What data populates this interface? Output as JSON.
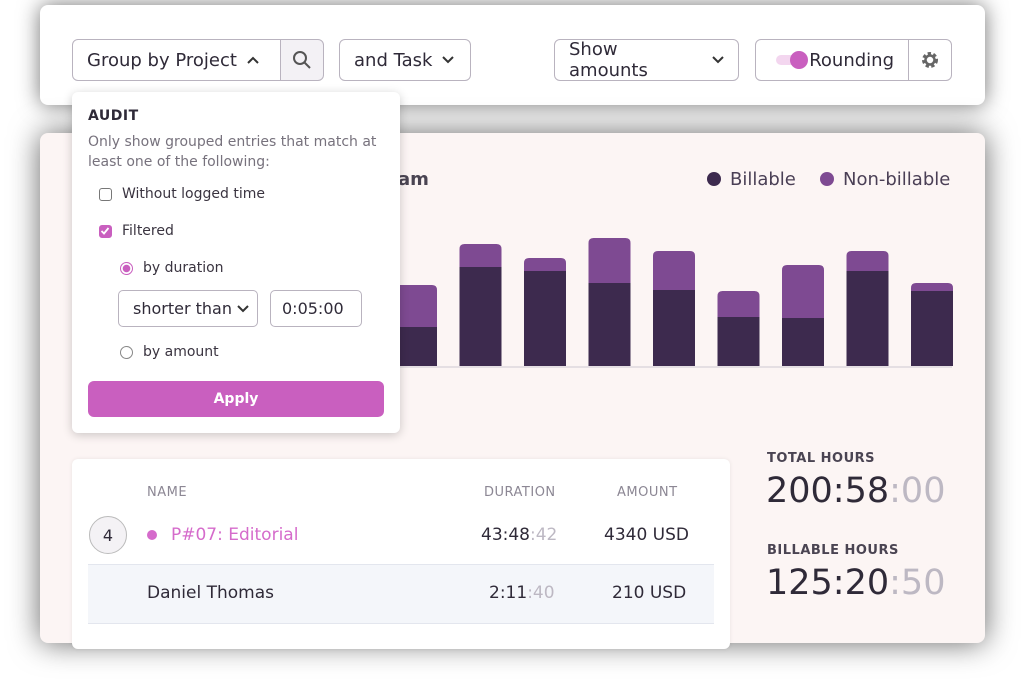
{
  "toolbar": {
    "group_by": "Group by Project",
    "and_task": "and Task",
    "show_amounts": "Show amounts",
    "rounding": "Rounding"
  },
  "audit": {
    "title": "AUDIT",
    "description": "Only show grouped entries that match at least one of the following:",
    "without_logged_time": {
      "label": "Without logged time",
      "checked": false
    },
    "filtered": {
      "label": "Filtered",
      "checked": true
    },
    "by_duration": {
      "label": "by duration",
      "checked": true
    },
    "comparison": "shorter than",
    "duration": "0:05:00",
    "by_amount": {
      "label": "by amount",
      "checked": false
    },
    "apply": "Apply"
  },
  "chart_data": {
    "type": "bar",
    "stacked": true,
    "title": "am",
    "ylim": [
      0,
      130
    ],
    "series": [
      {
        "name": "Billable",
        "color": "#3d2a4e",
        "values": [
          39,
          99,
          95,
          83,
          76,
          49,
          48,
          95,
          75
        ]
      },
      {
        "name": "Non-billable",
        "color": "#7e4a92",
        "values": [
          42,
          23,
          13,
          45,
          39,
          26,
          53,
          20,
          8
        ]
      }
    ]
  },
  "table": {
    "headers": [
      "NAME",
      "DURATION",
      "AMOUNT"
    ],
    "rows": [
      {
        "count": 4,
        "name": "P#07: Editorial",
        "duration": "43:48",
        "seconds": ":42",
        "amount": "4340 USD"
      },
      {
        "name": "Daniel Thomas",
        "duration": "2:11",
        "seconds": ":40",
        "amount": "210 USD"
      }
    ]
  },
  "totals": [
    {
      "label": "TOTAL HOURS",
      "value": "200:58",
      "seconds": ":00"
    },
    {
      "label": "BILLABLE HOURS",
      "value": "125:20",
      "seconds": ":50"
    }
  ]
}
